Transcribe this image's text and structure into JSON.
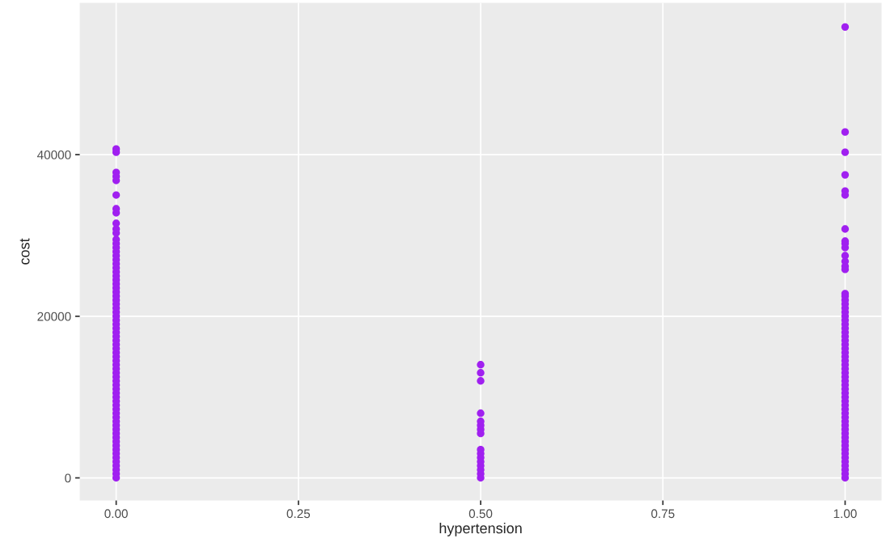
{
  "chart_data": {
    "type": "scatter",
    "xlabel": "hypertension",
    "ylabel": "cost",
    "x": [
      0,
      0,
      0,
      0,
      0,
      0,
      0,
      0,
      0,
      0,
      0,
      0,
      0,
      0,
      0,
      0,
      0,
      0,
      0,
      0,
      0,
      0,
      0,
      0,
      0,
      0,
      0,
      0,
      0,
      0,
      0,
      0,
      0,
      0,
      0,
      0,
      0,
      0,
      0,
      0,
      0,
      0,
      0,
      0,
      0,
      0,
      0,
      0,
      0,
      0,
      0,
      0,
      0,
      0,
      0,
      0,
      0,
      0,
      0,
      0,
      0,
      0,
      0,
      0,
      0,
      0,
      0,
      0,
      0,
      0,
      0,
      0.5,
      0.5,
      0.5,
      0.5,
      0.5,
      0.5,
      0.5,
      0.5,
      0.5,
      0.5,
      0.5,
      0.5,
      0.5,
      0.5,
      0.5,
      0.5,
      1,
      1,
      1,
      1,
      1,
      1,
      1,
      1,
      1,
      1,
      1,
      1,
      1,
      1,
      1,
      1,
      1,
      1,
      1,
      1,
      1,
      1,
      1,
      1,
      1,
      1,
      1,
      1,
      1,
      1,
      1,
      1,
      1,
      1,
      1,
      1,
      1,
      1,
      1,
      1,
      1,
      1,
      1,
      1,
      1,
      1,
      1,
      1,
      1,
      1,
      1,
      1,
      1,
      1,
      1,
      1,
      1,
      1,
      1,
      1,
      1
    ],
    "values": [
      0,
      500,
      1000,
      1500,
      2000,
      2500,
      3000,
      3500,
      4000,
      4500,
      5000,
      5500,
      6000,
      6500,
      7000,
      7500,
      8000,
      8500,
      9000,
      9500,
      10000,
      10500,
      11000,
      11500,
      12000,
      12500,
      13000,
      13500,
      14000,
      14500,
      15000,
      15500,
      16000,
      16500,
      17000,
      17500,
      18000,
      18500,
      19000,
      19500,
      20000,
      20500,
      21000,
      21500,
      22000,
      22500,
      23000,
      23500,
      24000,
      24500,
      25000,
      25500,
      26000,
      26500,
      27000,
      27500,
      28000,
      28500,
      29000,
      29500,
      30300,
      30800,
      31500,
      32800,
      33300,
      35000,
      36800,
      37300,
      37800,
      40300,
      40700,
      0,
      500,
      1000,
      1500,
      2000,
      2500,
      3000,
      3500,
      5500,
      6000,
      6500,
      7000,
      8000,
      12000,
      13000,
      14000,
      0,
      500,
      1000,
      1500,
      2000,
      2500,
      3000,
      3500,
      4000,
      4500,
      5000,
      5500,
      6000,
      6500,
      7000,
      7500,
      8000,
      8500,
      9000,
      9500,
      10000,
      10500,
      11000,
      11500,
      12000,
      12500,
      13000,
      13500,
      14000,
      14500,
      15000,
      15500,
      16000,
      16500,
      17000,
      17500,
      18000,
      18500,
      19000,
      19500,
      20000,
      20500,
      21000,
      21500,
      22000,
      22500,
      22800,
      25800,
      26200,
      26800,
      27500,
      28500,
      29000,
      29300,
      30800,
      35000,
      35500,
      37500,
      40300,
      42800,
      55800
    ],
    "color": "#a020f0",
    "marker": "circle",
    "grid": true,
    "xlim": [
      -0.05,
      1.05
    ],
    "xticks": [
      {
        "value": 0,
        "label": "0.00"
      },
      {
        "value": 0.25,
        "label": "0.25"
      },
      {
        "value": 0.5,
        "label": "0.50"
      },
      {
        "value": 0.75,
        "label": "0.75"
      },
      {
        "value": 1,
        "label": "1.00"
      }
    ],
    "ylim": [
      -2800,
      58800
    ],
    "yticks": [
      0,
      20000,
      40000
    ]
  }
}
